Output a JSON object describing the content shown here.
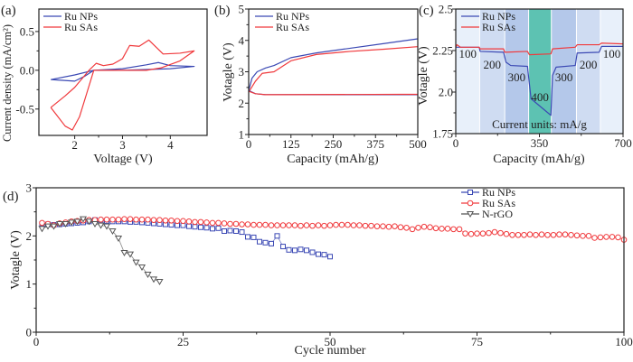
{
  "colors": {
    "ru_nps": "#3b49b4",
    "ru_sas": "#f0393c",
    "n_rgo": "#555555",
    "band_100": "#e8f0fa",
    "band_200": "#cfdcf2",
    "band_300": "#b4c8ea",
    "band_400": "#5dc2b2"
  },
  "chart_data": [
    {
      "panel": "(a)",
      "type": "line",
      "xlabel": "Voltage (V)",
      "ylabel": "Current density (mA/cm²)",
      "xlim": [
        1.25,
        4.77
      ],
      "ylim": [
        -0.84,
        0.79
      ],
      "xticks": [
        "2",
        "3",
        "4"
      ],
      "yticks": [
        "-0.5",
        "0.0",
        "0.5"
      ],
      "xtick_values": [
        2,
        3,
        4
      ],
      "ytick_values": [
        -0.5,
        0,
        0.5
      ],
      "legend": "top-left",
      "series": [
        {
          "name": "Ru NPs",
          "color": "ru_nps",
          "x": [
            1.5,
            2.0,
            2.4,
            3.0,
            3.5,
            3.75,
            4.0,
            4.5,
            4.0,
            3.0,
            2.4,
            2.2,
            2.0,
            1.5
          ],
          "y": [
            -0.12,
            -0.06,
            0.0,
            0.02,
            0.07,
            0.1,
            0.06,
            0.05,
            0.02,
            0.0,
            0.0,
            -0.08,
            -0.14,
            -0.12
          ]
        },
        {
          "name": "Ru SAs",
          "color": "ru_sas",
          "x": [
            1.5,
            1.8,
            2.0,
            2.3,
            2.45,
            2.6,
            2.8,
            3.0,
            3.15,
            3.35,
            3.55,
            3.7,
            3.85,
            4.2,
            4.5,
            4.2,
            3.8,
            3.5,
            2.6,
            2.4,
            2.25,
            2.1,
            1.95,
            1.8,
            1.5
          ],
          "y": [
            -0.48,
            -0.33,
            -0.22,
            0.0,
            0.09,
            0.06,
            0.08,
            0.15,
            0.32,
            0.31,
            0.39,
            0.3,
            0.21,
            0.22,
            0.25,
            0.12,
            0.03,
            0.0,
            0.0,
            0.0,
            -0.3,
            -0.6,
            -0.77,
            -0.72,
            -0.48
          ]
        }
      ]
    },
    {
      "panel": "(b)",
      "type": "line",
      "xlabel": "Capacity (mAh/g)",
      "ylabel": "Votagle (V)",
      "xlim": [
        0,
        500
      ],
      "ylim": [
        1,
        5
      ],
      "xticks": [
        "0",
        "125",
        "250",
        "375",
        "500"
      ],
      "yticks": [
        "1",
        "2",
        "3",
        "4",
        "5"
      ],
      "xtick_values": [
        0,
        125,
        250,
        375,
        500
      ],
      "ytick_values": [
        1,
        2,
        3,
        4,
        5
      ],
      "legend": "top-left",
      "series": [
        {
          "name": "Ru NPs",
          "color": "ru_nps",
          "x": [
            0,
            10,
            25,
            50,
            75,
            125,
            200,
            300,
            400,
            500
          ],
          "y": [
            2.4,
            2.8,
            3.0,
            3.12,
            3.2,
            3.45,
            3.6,
            3.75,
            3.9,
            4.05
          ]
        },
        {
          "name": "Ru SAs",
          "color": "ru_sas",
          "x": [
            0,
            20,
            40,
            75,
            125,
            200,
            300,
            400,
            500
          ],
          "y": [
            2.35,
            2.7,
            2.95,
            3.0,
            3.35,
            3.55,
            3.65,
            3.72,
            3.8
          ]
        },
        {
          "color": "ru_nps",
          "x": [
            0,
            20,
            50,
            500
          ],
          "y": [
            2.4,
            2.3,
            2.27,
            2.27
          ]
        },
        {
          "color": "ru_sas",
          "x": [
            0,
            20,
            50,
            450,
            500
          ],
          "y": [
            2.38,
            2.3,
            2.27,
            2.28,
            2.28
          ]
        }
      ]
    },
    {
      "panel": "(c)",
      "type": "line",
      "xlabel": "Capacity (mAh/g)",
      "ylabel": "Votagle (V)",
      "xlim": [
        0,
        700
      ],
      "ylim": [
        1.75,
        2.5
      ],
      "xticks": [
        "0",
        "350",
        "700"
      ],
      "yticks": [
        "1.75",
        "2.0",
        "2.25",
        "2.5"
      ],
      "xtick_values": [
        0,
        350,
        700
      ],
      "ytick_values": [
        1.75,
        2.0,
        2.25,
        2.5
      ],
      "legend": "top-left",
      "bands": [
        {
          "from": 0,
          "to": 100,
          "current": "100",
          "fill": "band_100"
        },
        {
          "from": 100,
          "to": 205,
          "current": "200",
          "fill": "band_200"
        },
        {
          "from": 205,
          "to": 305,
          "current": "300",
          "fill": "band_300"
        },
        {
          "from": 305,
          "to": 400,
          "current": "400",
          "fill": "band_400"
        },
        {
          "from": 400,
          "to": 505,
          "current": "300",
          "fill": "band_300"
        },
        {
          "from": 505,
          "to": 605,
          "current": "200",
          "fill": "band_200"
        },
        {
          "from": 605,
          "to": 700,
          "current": "100",
          "fill": "band_100"
        }
      ],
      "annotation": "Current units: mA/g",
      "series": [
        {
          "name": "Ru NPs",
          "color": "ru_nps",
          "x": [
            0,
            98,
            102,
            200,
            210,
            230,
            300,
            308,
            315,
            398,
            405,
            420,
            500,
            508,
            600,
            610,
            700
          ],
          "y": [
            2.27,
            2.27,
            2.245,
            2.24,
            2.18,
            2.16,
            2.155,
            2.05,
            1.96,
            1.86,
            2.1,
            2.15,
            2.16,
            2.235,
            2.24,
            2.275,
            2.275
          ]
        },
        {
          "name": "Ru SAs",
          "color": "ru_sas",
          "x": [
            0,
            5,
            20,
            98,
            102,
            200,
            205,
            300,
            308,
            398,
            405,
            500,
            508,
            600,
            610,
            700
          ],
          "y": [
            2.27,
            2.285,
            2.27,
            2.27,
            2.26,
            2.26,
            2.24,
            2.245,
            2.225,
            2.23,
            2.26,
            2.27,
            2.285,
            2.285,
            2.295,
            2.29
          ]
        }
      ]
    },
    {
      "panel": "(d)",
      "type": "scatter",
      "xlabel": "Cycle number",
      "ylabel": "Votagle (V)",
      "xlim": [
        0,
        100
      ],
      "ylim": [
        0,
        3
      ],
      "xticks": [
        "0",
        "25",
        "50",
        "75",
        "100"
      ],
      "yticks": [
        "0",
        "1",
        "2",
        "3"
      ],
      "xtick_values": [
        0,
        25,
        50,
        75,
        100
      ],
      "ytick_values": [
        0,
        1,
        2,
        3
      ],
      "legend": "top-right",
      "series": [
        {
          "name": "Ru NPs",
          "color": "ru_nps",
          "marker": "square",
          "y": [
            2.25,
            2.24,
            2.23,
            2.24,
            2.25,
            2.26,
            2.27,
            2.28,
            2.3,
            2.33,
            2.32,
            2.31,
            2.3,
            2.3,
            2.3,
            2.29,
            2.29,
            2.28,
            2.27,
            2.26,
            2.25,
            2.24,
            2.23,
            2.22,
            2.22,
            2.2,
            2.19,
            2.18,
            2.17,
            2.15,
            2.16,
            2.1,
            2.11,
            2.1,
            2.08,
            1.98,
            1.97,
            1.88,
            1.86,
            1.84,
            2.0,
            1.78,
            1.71,
            1.7,
            1.72,
            1.7,
            1.66,
            1.62,
            1.61,
            1.57
          ]
        },
        {
          "name": "Ru SAs",
          "color": "ru_sas",
          "marker": "circle",
          "y": [
            2.27,
            2.25,
            2.22,
            2.26,
            2.28,
            2.3,
            2.31,
            2.32,
            2.33,
            2.33,
            2.34,
            2.34,
            2.34,
            2.34,
            2.35,
            2.35,
            2.34,
            2.34,
            2.34,
            2.33,
            2.33,
            2.32,
            2.32,
            2.31,
            2.31,
            2.3,
            2.29,
            2.29,
            2.28,
            2.27,
            2.27,
            2.26,
            2.25,
            2.25,
            2.24,
            2.24,
            2.23,
            2.23,
            2.23,
            2.22,
            2.22,
            2.22,
            2.22,
            2.22,
            2.21,
            2.22,
            2.21,
            2.22,
            2.21,
            2.22,
            2.23,
            2.23,
            2.23,
            2.22,
            2.22,
            2.21,
            2.21,
            2.2,
            2.2,
            2.19,
            2.2,
            2.18,
            2.17,
            2.14,
            2.17,
            2.19,
            2.18,
            2.16,
            2.15,
            2.15,
            2.14,
            2.14,
            2.05,
            2.04,
            2.05,
            2.05,
            2.06,
            2.08,
            2.06,
            2.04,
            2.02,
            2.02,
            2.02,
            2.03,
            2.02,
            2.03,
            2.02,
            2.02,
            2.03,
            2.03,
            2.02,
            2.01,
            2.0,
            2.0,
            1.96,
            1.97,
            1.98,
            1.98,
            1.97,
            1.92
          ]
        },
        {
          "name": "N-rGO",
          "color": "n_rgo",
          "marker": "triangle-down",
          "y": [
            2.15,
            2.2,
            2.2,
            2.25,
            2.25,
            2.28,
            2.3,
            2.35,
            2.3,
            2.25,
            2.22,
            2.2,
            2.1,
            1.95,
            1.65,
            1.62,
            1.45,
            1.35,
            1.2,
            1.1,
            1.05
          ]
        }
      ]
    }
  ]
}
